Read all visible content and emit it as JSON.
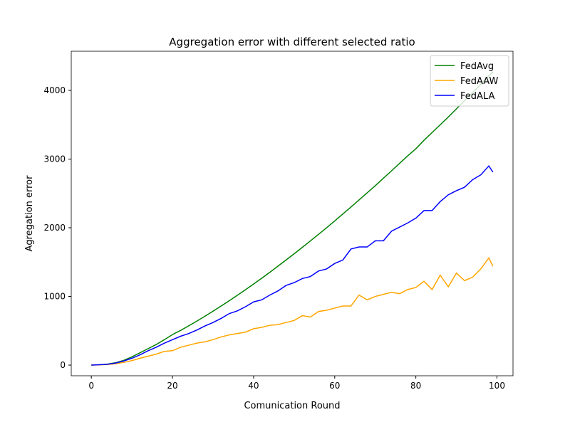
{
  "chart_data": {
    "type": "line",
    "title": "Aggregation error with different selected ratio",
    "xlabel": "Comunication Round",
    "ylabel": "Agregation error",
    "x": [
      0,
      2,
      4,
      6,
      8,
      10,
      12,
      14,
      16,
      18,
      20,
      22,
      24,
      26,
      28,
      30,
      32,
      34,
      36,
      38,
      40,
      42,
      44,
      46,
      48,
      50,
      52,
      54,
      56,
      58,
      60,
      62,
      64,
      66,
      68,
      70,
      72,
      74,
      76,
      78,
      80,
      82,
      84,
      86,
      88,
      90,
      92,
      94,
      96,
      98,
      99
    ],
    "series": [
      {
        "name": "FedAvg",
        "color": "green",
        "values": [
          0,
          5,
          15,
          35,
          70,
          120,
          180,
          240,
          300,
          370,
          445,
          505,
          572,
          640,
          712,
          785,
          860,
          937,
          1017,
          1098,
          1180,
          1265,
          1351,
          1441,
          1530,
          1621,
          1714,
          1808,
          1904,
          2000,
          2099,
          2200,
          2302,
          2405,
          2509,
          2612,
          2721,
          2828,
          2939,
          3047,
          3150,
          3273,
          3386,
          3499,
          3612,
          3731,
          3850,
          3969,
          4088,
          4213,
          4270
        ]
      },
      {
        "name": "FedAAW",
        "color": "orange",
        "values": [
          0,
          3,
          10,
          20,
          40,
          65,
          100,
          130,
          160,
          200,
          210,
          260,
          290,
          320,
          340,
          370,
          410,
          440,
          460,
          480,
          530,
          550,
          580,
          590,
          620,
          650,
          720,
          700,
          780,
          800,
          830,
          860,
          860,
          1020,
          950,
          1000,
          1030,
          1060,
          1040,
          1100,
          1130,
          1220,
          1100,
          1310,
          1140,
          1340,
          1230,
          1280,
          1400,
          1560,
          1440
        ]
      },
      {
        "name": "FedALA",
        "color": "blue",
        "values": [
          0,
          5,
          12,
          30,
          60,
          100,
          150,
          210,
          260,
          320,
          370,
          420,
          460,
          510,
          570,
          620,
          680,
          750,
          790,
          850,
          920,
          950,
          1020,
          1080,
          1160,
          1200,
          1260,
          1290,
          1370,
          1400,
          1480,
          1530,
          1690,
          1720,
          1720,
          1810,
          1810,
          1950,
          2010,
          2070,
          2140,
          2250,
          2250,
          2380,
          2480,
          2540,
          2590,
          2700,
          2770,
          2900,
          2810
        ]
      }
    ],
    "xlim": [
      -4.95,
      103.95
    ],
    "xticks": [
      0,
      20,
      40,
      60,
      80,
      100
    ],
    "ylim": [
      -155,
      4570
    ],
    "yticks": [
      0,
      1000,
      2000,
      3000,
      4000
    ],
    "legend": "upper right",
    "grid": false
  }
}
